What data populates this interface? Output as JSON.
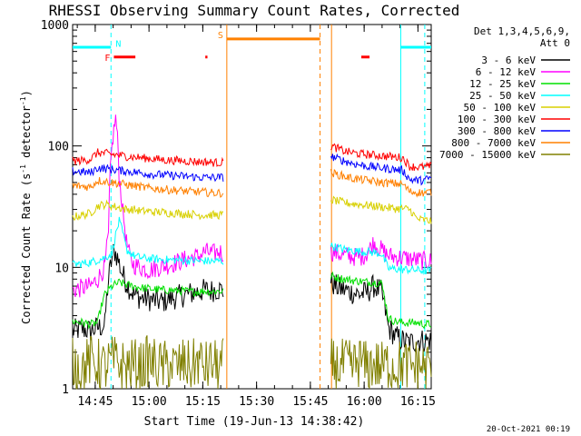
{
  "chart_data": {
    "type": "line",
    "title": "RHESSI Observing Summary Count Rates, Corrected",
    "xlabel": "Start Time (19-Jun-13 14:38:42)",
    "ylabel_main": "Corrected Count Rate (s",
    "ylabel_sup1": "-1",
    "ylabel_mid": " detector",
    "ylabel_sup2": "-1",
    "ylabel_end": ")",
    "timestamp": "20-Oct-2021 00:19",
    "y_scale": "log",
    "x_unit": "minutes after 14:38:42",
    "xlim": [
      0,
      100
    ],
    "ylim": [
      1,
      1000
    ],
    "x_ticks": [
      {
        "value": 6.3,
        "label": "14:45"
      },
      {
        "value": 21.3,
        "label": "15:00"
      },
      {
        "value": 36.3,
        "label": "15:15"
      },
      {
        "value": 51.3,
        "label": "15:30"
      },
      {
        "value": 66.3,
        "label": "15:45"
      },
      {
        "value": 81.3,
        "label": "16:00"
      },
      {
        "value": 96.3,
        "label": "16:15"
      }
    ],
    "y_ticks": [
      {
        "value": 1,
        "label": "1"
      },
      {
        "value": 10,
        "label": "10"
      },
      {
        "value": 100,
        "label": "100"
      },
      {
        "value": 1000,
        "label": "1000"
      }
    ],
    "legend_header": [
      "Det 1,3,4,5,6,9,",
      "Att 0"
    ],
    "series": [
      {
        "name": "3 - 6 keV",
        "color": "#000000",
        "segments": [
          {
            "x": [
              0,
              3,
              5,
              7,
              9,
              10.5,
              11.5,
              12.5,
              13.5,
              14.5,
              15.5,
              17,
              19,
              21,
              23,
              25,
              27,
              29,
              31,
              33,
              35,
              37,
              38.5,
              40,
              42
            ],
            "y": [
              3.0,
              3.1,
              3.0,
              3.2,
              3.3,
              10,
              14,
              12,
              9.5,
              8,
              7,
              6,
              5.6,
              5.5,
              5.3,
              5.2,
              5.5,
              5.7,
              5.9,
              6.1,
              6.3,
              6.5,
              6.4,
              6.6,
              6.5
            ]
          },
          {
            "x": [
              72,
              74,
              76,
              78,
              80,
              82,
              84,
              86,
              88,
              90,
              92,
              94,
              96,
              98,
              100
            ],
            "y": [
              7.5,
              6.8,
              6.5,
              6.2,
              6.0,
              6.2,
              7,
              6.3,
              3.2,
              2.7,
              2.5,
              2.4,
              2.5,
              2.5,
              2.5
            ]
          }
        ]
      },
      {
        "name": "6 - 12 keV",
        "color": "#ff00ff",
        "segments": [
          {
            "x": [
              0,
              3,
              5,
              7,
              9,
              10,
              11,
              12,
              13,
              14,
              15,
              16,
              17,
              19,
              21,
              23,
              25,
              27,
              29,
              31,
              33,
              35,
              37,
              39,
              41,
              42
            ],
            "y": [
              6.5,
              6.8,
              7,
              8,
              10,
              18,
              100,
              170,
              55,
              28,
              16,
              12,
              10.5,
              10,
              9.5,
              9.8,
              10.2,
              10.5,
              11,
              11.5,
              12,
              12.3,
              13.5,
              13,
              13.5,
              13
            ]
          },
          {
            "x": [
              72,
              74,
              76,
              78,
              80,
              82,
              84,
              86,
              88,
              90,
              92,
              94,
              96,
              98,
              100
            ],
            "y": [
              13.5,
              13,
              12.5,
              12.3,
              12,
              13,
              16,
              14,
              12.5,
              12.2,
              12,
              11.8,
              11.5,
              11.3,
              11.2
            ]
          }
        ]
      },
      {
        "name": "12 - 25 keV",
        "color": "#00e000",
        "segments": [
          {
            "x": [
              0,
              3,
              5,
              7,
              9,
              11,
              13,
              15,
              17,
              19,
              21,
              23,
              25,
              27,
              29,
              31,
              33,
              35,
              37,
              39,
              41,
              42
            ],
            "y": [
              3.6,
              3.5,
              3.4,
              3.5,
              6,
              7,
              7.5,
              7.2,
              7,
              6.8,
              6.7,
              6.6,
              6.5,
              6.5,
              6.4,
              6.4,
              6.3,
              6.3,
              6.4,
              6.3,
              6.4,
              6.3
            ]
          },
          {
            "x": [
              72,
              74,
              76,
              78,
              80,
              82,
              84,
              86,
              88,
              90,
              92,
              94,
              96,
              98,
              100
            ],
            "y": [
              8.5,
              8.2,
              8,
              7.8,
              7.7,
              7.6,
              7.5,
              7.5,
              3.8,
              3.6,
              3.5,
              3.5,
              3.5,
              3.4,
              3.4
            ]
          }
        ]
      },
      {
        "name": "25 - 50 keV",
        "color": "#00ffff",
        "segments": [
          {
            "x": [
              0,
              3,
              5,
              7,
              9,
              11,
              13,
              15,
              17,
              19,
              21,
              23,
              25,
              27,
              29,
              31,
              33,
              35,
              37,
              39,
              41,
              42
            ],
            "y": [
              10.5,
              10.8,
              11,
              11.5,
              12,
              13,
              24,
              14,
              12.5,
              12,
              11.8,
              11.7,
              11.6,
              11.5,
              11.5,
              11.4,
              11.4,
              11.3,
              11.3,
              11.2,
              11.3,
              11.2
            ]
          },
          {
            "x": [
              72,
              74,
              76,
              78,
              80,
              82,
              84,
              86,
              88,
              90,
              92,
              94,
              96,
              98,
              100
            ],
            "y": [
              15,
              14.5,
              14,
              13.8,
              13.5,
              13.5,
              13.2,
              13,
              9.8,
              9.7,
              9.6,
              9.6,
              9.5,
              9.4,
              9.4
            ]
          }
        ]
      },
      {
        "name": "50 - 100 keV",
        "color": "#d8d000",
        "segments": [
          {
            "x": [
              0,
              3,
              5,
              7,
              9,
              11,
              13,
              15,
              17,
              19,
              21,
              23,
              25,
              27,
              29,
              31,
              33,
              35,
              37,
              39,
              41,
              42
            ],
            "y": [
              26,
              27,
              28,
              32,
              33,
              32,
              31,
              30,
              30,
              29,
              29,
              28.5,
              28.5,
              28,
              28,
              27.5,
              27.5,
              27,
              27,
              27,
              27,
              27
            ]
          },
          {
            "x": [
              72,
              74,
              76,
              78,
              80,
              82,
              84,
              86,
              88,
              90,
              92,
              94,
              96,
              98,
              100
            ],
            "y": [
              36,
              35,
              34,
              33.5,
              33,
              32.5,
              32,
              31.5,
              31,
              30.5,
              30.5,
              30,
              25,
              24.5,
              24
            ]
          }
        ]
      },
      {
        "name": "100 - 300 keV",
        "color": "#ff0000",
        "segments": [
          {
            "x": [
              0,
              3,
              5,
              7,
              9,
              11,
              13,
              15,
              17,
              19,
              21,
              23,
              25,
              27,
              29,
              31,
              33,
              35,
              37,
              39,
              41,
              42
            ],
            "y": [
              75,
              76,
              78,
              88,
              87,
              85,
              84,
              82,
              81,
              80,
              79,
              78,
              77,
              76,
              76,
              75,
              75,
              74,
              74,
              73,
              73,
              73
            ]
          },
          {
            "x": [
              72,
              74,
              76,
              78,
              80,
              82,
              84,
              86,
              88,
              90,
              92,
              94,
              96,
              98,
              100
            ],
            "y": [
              100,
              95,
              90,
              88,
              86,
              85,
              84,
              83,
              82,
              81,
              80,
              68,
              67,
              67,
              68
            ]
          }
        ]
      },
      {
        "name": "300 - 800 keV",
        "color": "#0000ff",
        "segments": [
          {
            "x": [
              0,
              3,
              5,
              7,
              9,
              11,
              13,
              15,
              17,
              19,
              21,
              23,
              25,
              27,
              29,
              31,
              33,
              35,
              37,
              39,
              41,
              42
            ],
            "y": [
              62,
              61,
              60,
              66,
              65,
              64,
              63,
              62,
              61,
              60,
              59,
              58,
              58,
              57,
              57,
              56,
              56,
              55,
              55,
              55,
              55,
              55
            ]
          },
          {
            "x": [
              72,
              74,
              76,
              78,
              80,
              82,
              84,
              86,
              88,
              90,
              92,
              94,
              96,
              98,
              100
            ],
            "y": [
              82,
              78,
              75,
              72,
              70,
              68,
              67,
              66,
              65,
              64,
              63,
              53,
              52,
              52,
              55
            ]
          }
        ]
      },
      {
        "name": "800 - 7000 keV",
        "color": "#ff8000",
        "segments": [
          {
            "x": [
              0,
              3,
              5,
              7,
              9,
              11,
              13,
              15,
              17,
              19,
              21,
              23,
              25,
              27,
              29,
              31,
              33,
              35,
              37,
              39,
              41,
              42
            ],
            "y": [
              47,
              46.5,
              46,
              52,
              51,
              50,
              49,
              48,
              47,
              46,
              45,
              44.5,
              44,
              43.5,
              43,
              42.5,
              42,
              42,
              41.5,
              41,
              41,
              41
            ]
          },
          {
            "x": [
              72,
              74,
              76,
              78,
              80,
              82,
              84,
              86,
              88,
              90,
              92,
              94,
              96,
              98,
              100
            ],
            "y": [
              60,
              58,
              56,
              54,
              53,
              52,
              51,
              50,
              49.5,
              49,
              48.5,
              42,
              41.5,
              41,
              42
            ]
          }
        ]
      },
      {
        "name": "7000 - 15000 keV",
        "color": "#808000",
        "segments": [
          {
            "x": [
              0,
              3,
              5,
              7,
              9,
              11,
              13,
              15,
              17,
              19,
              21,
              23,
              25,
              27,
              29,
              31,
              33,
              35,
              37,
              39,
              41,
              42
            ],
            "y": [
              1.6,
              1.5,
              1.7,
              1.6,
              1.5,
              1.7,
              1.6,
              1.5,
              1.6,
              1.5,
              1.7,
              1.6,
              1.5,
              1.6,
              1.5,
              1.6,
              1.5,
              1.7,
              1.5,
              1.6,
              1.5,
              1.6
            ]
          },
          {
            "x": [
              72,
              74,
              76,
              78,
              80,
              82,
              84,
              86,
              88,
              90,
              92,
              94,
              96,
              98,
              100
            ],
            "y": [
              1.6,
              1.5,
              1.6,
              1.5,
              1.7,
              1.5,
              1.6,
              1.5,
              1.6,
              1.5,
              1.6,
              1.5,
              1.6,
              1.5,
              1.6
            ]
          }
        ]
      }
    ],
    "markers": [
      {
        "type": "cyan_bar",
        "label": "",
        "x": [
          0,
          10.7
        ],
        "y": 650,
        "color": "#00ffff"
      },
      {
        "type": "cyan_bar",
        "label": "",
        "x": [
          91.5,
          100
        ],
        "y": 650,
        "color": "#00ffff"
      },
      {
        "type": "orange_bar",
        "label": "S",
        "x": [
          43,
          69
        ],
        "y": 760,
        "color": "#ff8000"
      },
      {
        "type": "flare_bar",
        "label": "F",
        "x": [
          11.5,
          17.5
        ],
        "y": 540,
        "color": "#ff0000"
      },
      {
        "type": "flare_bar",
        "label": "",
        "x": [
          37,
          37.6
        ],
        "y": 540,
        "color": "#ff0000"
      },
      {
        "type": "flare_bar",
        "label": "",
        "x": [
          80.5,
          82.8
        ],
        "y": 540,
        "color": "#ff0000"
      },
      {
        "type": "label",
        "label": "N",
        "x": 12,
        "y": 700,
        "color": "#00ffff"
      }
    ],
    "vlines": [
      {
        "x": 10.7,
        "color": "#00ffff",
        "style": "dashed"
      },
      {
        "x": 43.0,
        "color": "#ff8000",
        "style": "solid"
      },
      {
        "x": 69.0,
        "color": "#ff8000",
        "style": "dashed"
      },
      {
        "x": 72.2,
        "color": "#ff8000",
        "style": "solid"
      },
      {
        "x": 91.5,
        "color": "#00ffff",
        "style": "solid"
      },
      {
        "x": 98.2,
        "color": "#00ffff",
        "style": "dashed"
      }
    ]
  }
}
